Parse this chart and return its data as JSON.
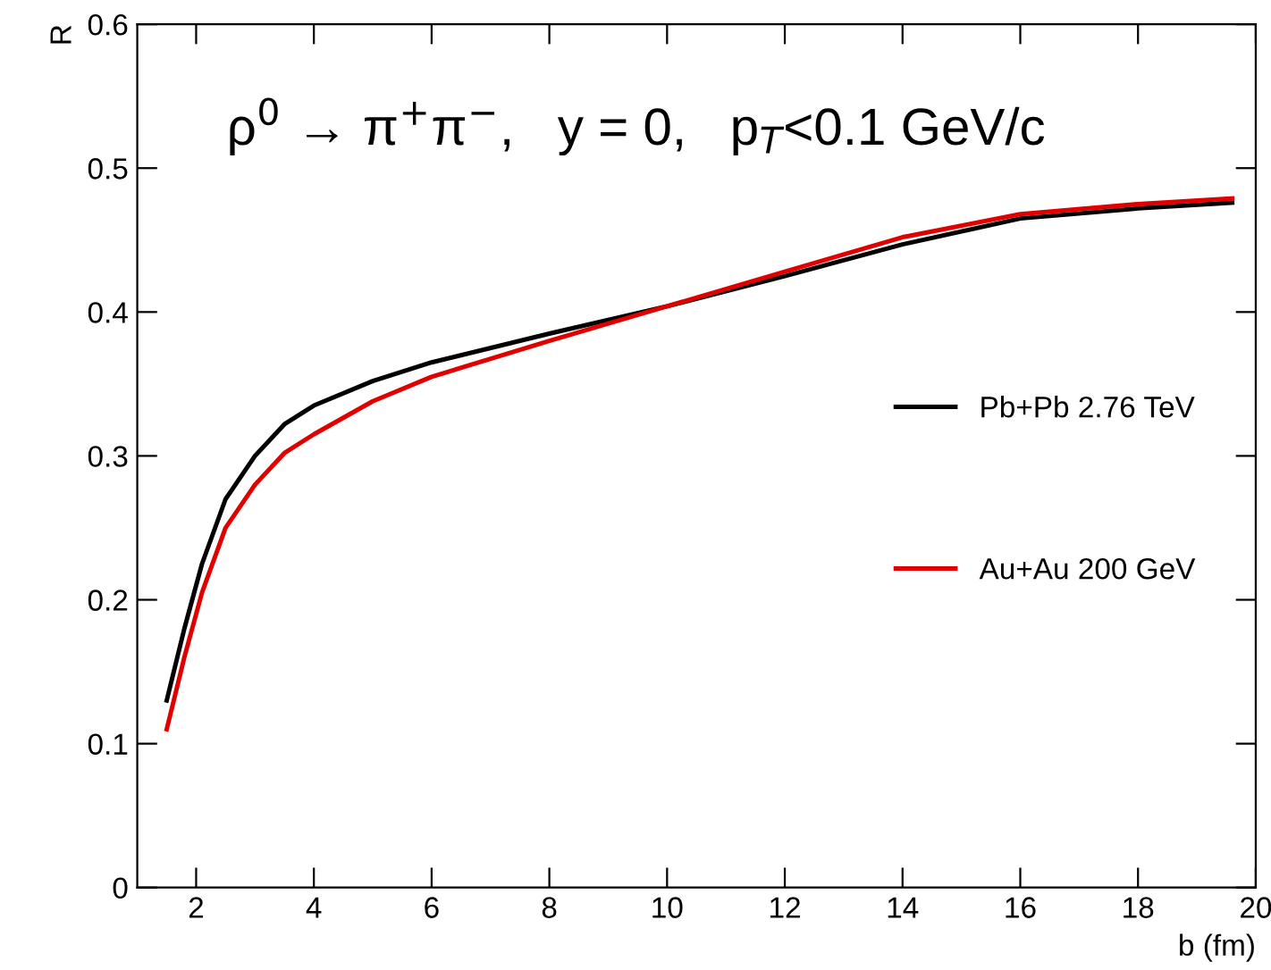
{
  "chart_data": {
    "type": "line",
    "xlabel": "b (fm)",
    "ylabel": "R",
    "annotations": [
      "ρ$^{0}$ → π$^{+}$π$^{−}$,   y = 0,   p$_{T}$<0.1 GeV/c"
    ],
    "xlim": [
      1,
      20
    ],
    "ylim": [
      0,
      0.6
    ],
    "xticks": [
      2,
      4,
      6,
      8,
      10,
      12,
      14,
      16,
      18,
      20
    ],
    "yticks": [
      0,
      0.1,
      0.2,
      0.3,
      0.4,
      0.5,
      0.6
    ],
    "grid": false,
    "legend": "right",
    "marker": "none",
    "line_style": "solid",
    "series": [
      {
        "name": "Pb+Pb 2.76 TeV",
        "color": "#000000",
        "x": [
          1.5,
          1.8,
          2.1,
          2.5,
          3,
          3.5,
          4,
          5,
          6,
          8,
          10,
          12,
          14,
          16,
          18,
          19.6
        ],
        "values": [
          0.13,
          0.18,
          0.225,
          0.27,
          0.3,
          0.322,
          0.335,
          0.352,
          0.365,
          0.385,
          0.404,
          0.425,
          0.447,
          0.465,
          0.472,
          0.476
        ]
      },
      {
        "name": "Au+Au 200 GeV",
        "color": "#e00000",
        "x": [
          1.5,
          1.8,
          2.1,
          2.5,
          3,
          3.5,
          4,
          5,
          6,
          8,
          10,
          12,
          14,
          16,
          18,
          19.6
        ],
        "values": [
          0.11,
          0.16,
          0.205,
          0.25,
          0.28,
          0.302,
          0.315,
          0.338,
          0.355,
          0.38,
          0.404,
          0.428,
          0.452,
          0.468,
          0.475,
          0.479
        ]
      }
    ]
  }
}
